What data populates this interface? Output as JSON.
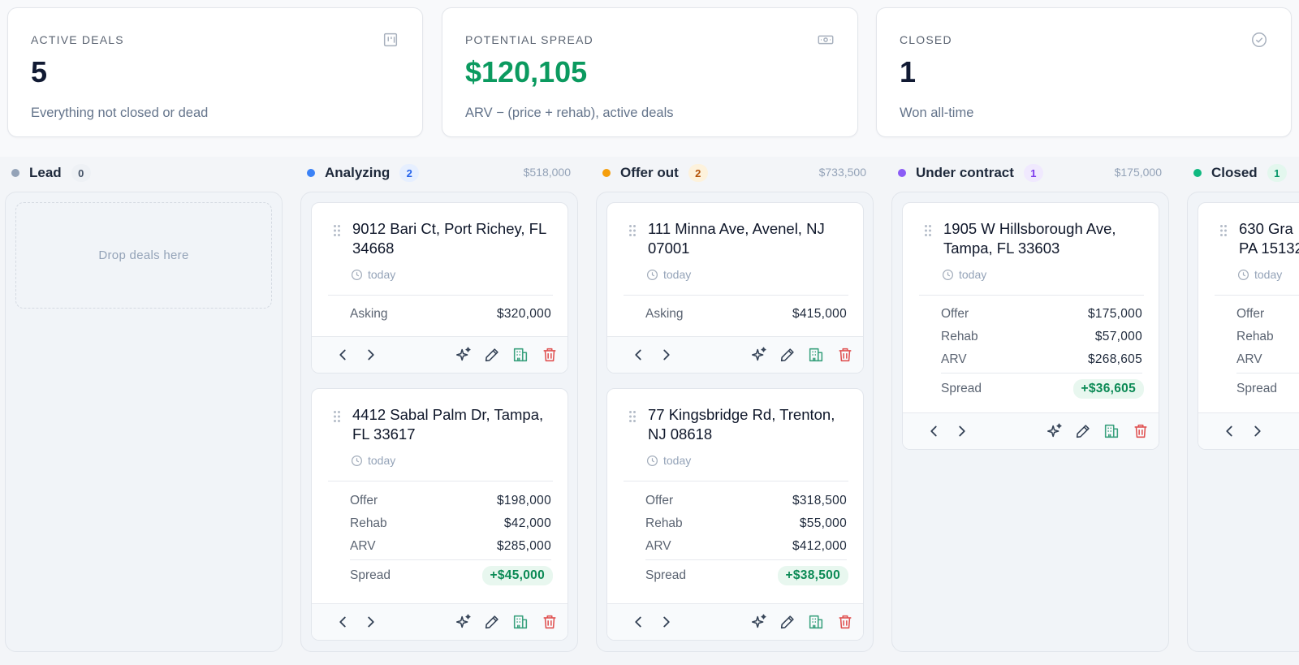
{
  "stats": [
    {
      "label": "ACTIVE DEALS",
      "value": "5",
      "sub": "Everything not closed or dead",
      "icon": "kanban-icon",
      "accent": "#111a33"
    },
    {
      "label": "POTENTIAL SPREAD",
      "value": "$120,105",
      "sub": "ARV − (price + rehab), active deals",
      "icon": "cash-icon",
      "accent": "#0b9a5f"
    },
    {
      "label": "CLOSED",
      "value": "1",
      "sub": "Won all-time",
      "icon": "check-circle-icon",
      "accent": "#111a33"
    }
  ],
  "columns": [
    {
      "name": "Lead",
      "count": "0",
      "total": "",
      "color": "#94a3b8",
      "badge_bg": "#eef1f5",
      "badge_fg": "#475569",
      "empty_text": "Drop deals here"
    },
    {
      "name": "Analyzing",
      "count": "2",
      "total": "$518,000",
      "color": "#3b82f6",
      "badge_bg": "#e6efff",
      "badge_fg": "#2563eb"
    },
    {
      "name": "Offer out",
      "count": "2",
      "total": "$733,500",
      "color": "#f59e0b",
      "badge_bg": "#fdf2dc",
      "badge_fg": "#b45309"
    },
    {
      "name": "Under contract",
      "count": "1",
      "total": "$175,000",
      "color": "#8b5cf6",
      "badge_bg": "#f0e9fe",
      "badge_fg": "#7c3aed"
    },
    {
      "name": "Closed",
      "count": "1",
      "total": "",
      "color": "#10b981",
      "badge_bg": "#e3f7ee",
      "badge_fg": "#059669"
    }
  ],
  "cards": {
    "c1": {
      "title": "9012 Bari Ct, Port Richey, FL 34668",
      "date": "today",
      "asking_label": "Asking",
      "asking": "$320,000"
    },
    "c2": {
      "title": "4412 Sabal Palm Dr, Tampa, FL 33617",
      "date": "today",
      "offer_label": "Offer",
      "offer": "$198,000",
      "rehab_label": "Rehab",
      "rehab": "$42,000",
      "arv_label": "ARV",
      "arv": "$285,000",
      "spread_label": "Spread",
      "spread": "+$45,000"
    },
    "c3": {
      "title": "111 Minna Ave, Avenel, NJ 07001",
      "date": "today",
      "asking_label": "Asking",
      "asking": "$415,000"
    },
    "c4": {
      "title": "77 Kingsbridge Rd, Trenton, NJ 08618",
      "date": "today",
      "offer_label": "Offer",
      "offer": "$318,500",
      "rehab_label": "Rehab",
      "rehab": "$55,000",
      "arv_label": "ARV",
      "arv": "$412,000",
      "spread_label": "Spread",
      "spread": "+$38,500"
    },
    "c5": {
      "title": "1905 W Hillsborough Ave, Tampa, FL 33603",
      "date": "today",
      "offer_label": "Offer",
      "offer": "$175,000",
      "rehab_label": "Rehab",
      "rehab": "$57,000",
      "arv_label": "ARV",
      "arv": "$268,605",
      "spread_label": "Spread",
      "spread": "+$36,605"
    },
    "c6": {
      "title": "630 Gra\nPA 15132",
      "date": "today",
      "offer_label": "Offer",
      "rehab_label": "Rehab",
      "arv_label": "ARV",
      "spread_label": "Spread"
    }
  },
  "action_icons": [
    "chevron-left-icon",
    "chevron-right-icon",
    "sparkles-icon",
    "pencil-icon",
    "building-icon",
    "trash-icon"
  ],
  "colors": {
    "danger": "#e05252",
    "success": "#0b9a5f",
    "building": "#3aa17e"
  }
}
